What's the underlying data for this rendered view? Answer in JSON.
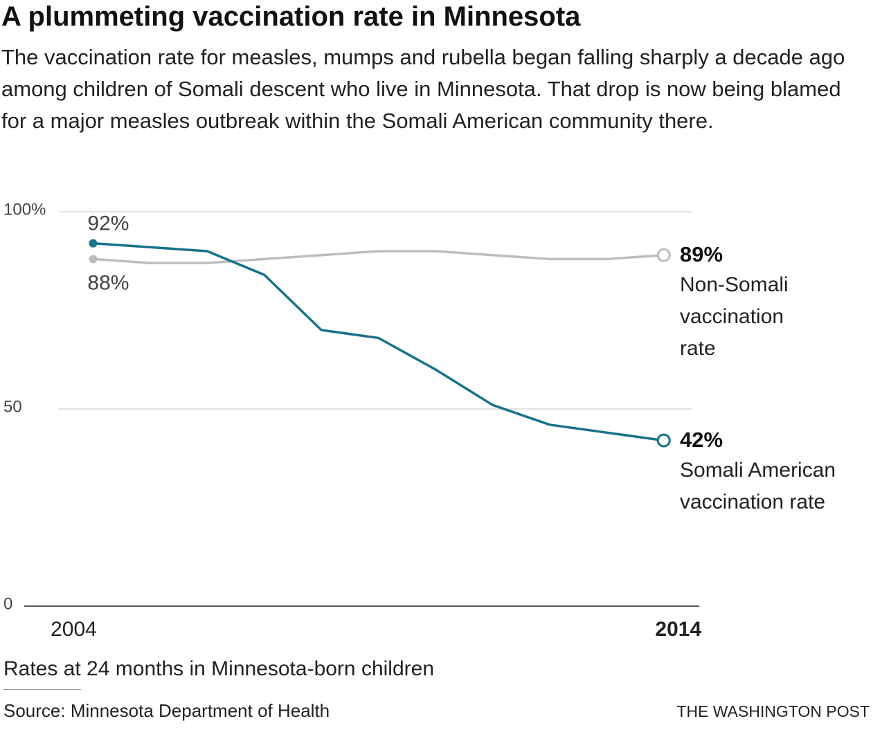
{
  "chart_data": {
    "type": "line",
    "title": "A plummeting vaccination rate in Minnesota",
    "subtitle": "The vaccination rate for measles, mumps and rubella began falling sharply a decade ago among children of Somali descent who live in Minnesota. That drop is now being blamed for a major measles outbreak within the Somali American community there.",
    "note": "Rates at 24 months in Minnesota-born children",
    "source": "Source: Minnesota Department of Health",
    "credit": "THE WASHINGTON POST",
    "x": [
      2004,
      2005,
      2006,
      2007,
      2008,
      2009,
      2010,
      2011,
      2012,
      2013,
      2014
    ],
    "xlim": [
      2003.4,
      2014.5
    ],
    "xticks": [
      2004,
      2014
    ],
    "ylim": [
      0,
      100
    ],
    "yticks": [
      {
        "value": 100,
        "label": "100%"
      },
      50,
      0
    ],
    "grid": true,
    "series": [
      {
        "name": "Non-Somali vaccination rate",
        "color": "#bdbdbd",
        "values": [
          88,
          87,
          87,
          88,
          89,
          90,
          90,
          89,
          88,
          88,
          89
        ],
        "value_labels": [
          "88%",
          null,
          null,
          null,
          null,
          null,
          null,
          null,
          null,
          null,
          "89%"
        ]
      },
      {
        "name": "Somali American vaccination rate",
        "color": "#17728a",
        "values": [
          92,
          91,
          90,
          84,
          70,
          68,
          60,
          51,
          46,
          44,
          42
        ],
        "value_labels": [
          "92%",
          null,
          null,
          null,
          null,
          null,
          null,
          null,
          null,
          null,
          "42%"
        ]
      }
    ]
  }
}
